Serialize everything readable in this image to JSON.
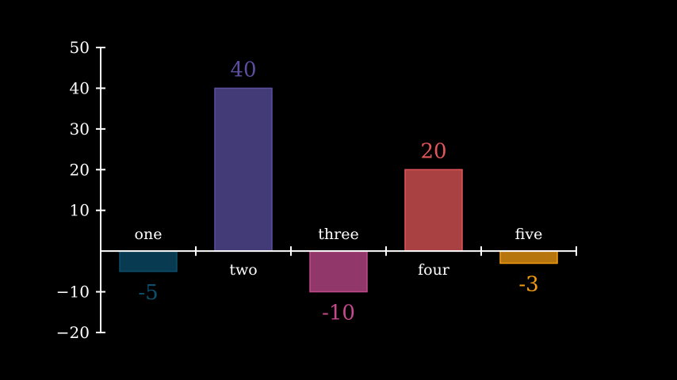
{
  "chart_data": {
    "type": "bar",
    "categories": [
      "one",
      "two",
      "three",
      "four",
      "five"
    ],
    "values": [
      -5,
      40,
      -10,
      20,
      -3
    ],
    "value_labels": [
      "-5",
      "40",
      "-10",
      "20",
      "-3"
    ],
    "colors": [
      "#0b4f6c",
      "#5a4fa0",
      "#c34a8c",
      "#e15759",
      "#f39c12"
    ],
    "ylim": [
      -20,
      50
    ],
    "yticks": [
      50,
      40,
      30,
      20,
      10,
      -10,
      -20
    ],
    "ytick_labels": [
      "50",
      "40",
      "30",
      "20",
      "10",
      "−10",
      "−20"
    ],
    "background": "#000000",
    "axis_color": "#ffffff",
    "grid": false
  }
}
